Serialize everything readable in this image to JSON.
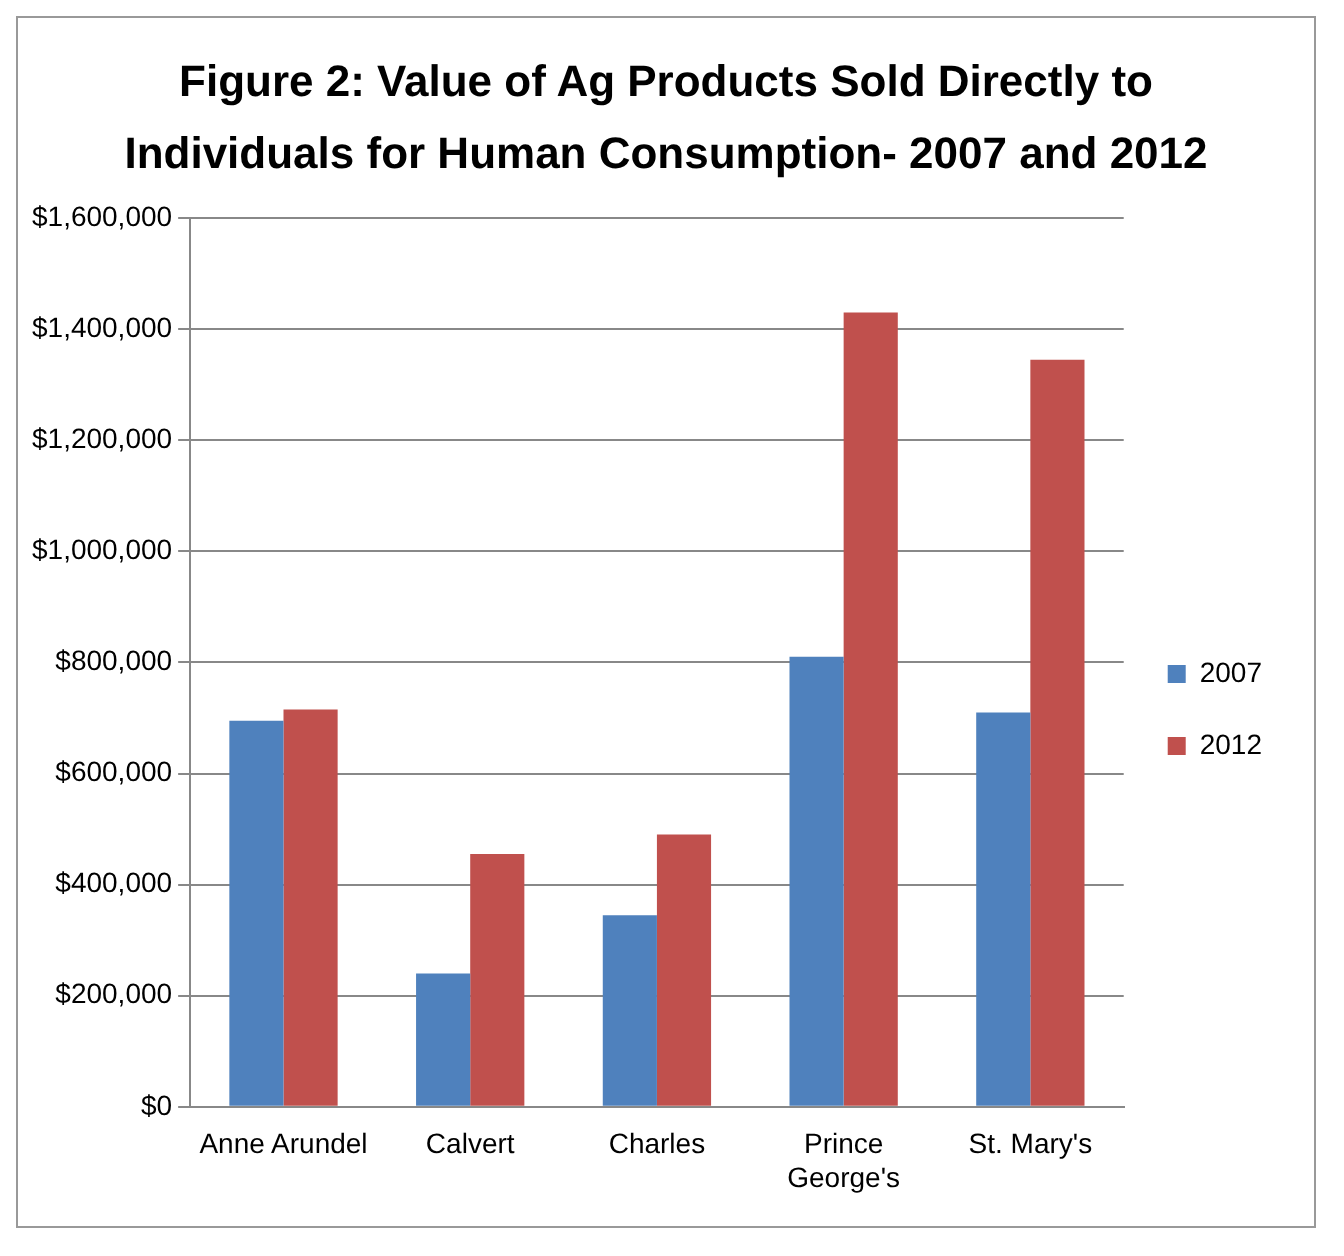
{
  "chart_data": {
    "type": "bar",
    "title": "Figure 2: Value of Ag Products Sold Directly to Individuals for Human Consumption- 2007 and 2012",
    "categories": [
      "Anne Arundel",
      "Calvert",
      "Charles",
      "Prince George's",
      "St. Mary's"
    ],
    "series": [
      {
        "name": "2007",
        "color": "#4f81bd",
        "values": [
          695000,
          240000,
          345000,
          810000,
          710000
        ]
      },
      {
        "name": "2012",
        "color": "#c0504d",
        "values": [
          715000,
          455000,
          490000,
          1430000,
          1345000
        ]
      }
    ],
    "ylim": [
      0,
      1600000
    ],
    "yticks": [
      {
        "value": 0,
        "label": "$0"
      },
      {
        "value": 200000,
        "label": "$200,000"
      },
      {
        "value": 400000,
        "label": "$400,000"
      },
      {
        "value": 600000,
        "label": "$600,000"
      },
      {
        "value": 800000,
        "label": "$800,000"
      },
      {
        "value": 1000000,
        "label": "$1,000,000"
      },
      {
        "value": 1200000,
        "label": "$1,200,000"
      },
      {
        "value": 1400000,
        "label": "$1,400,000"
      },
      {
        "value": 1600000,
        "label": "$1,600,000"
      }
    ],
    "grid": "y",
    "legend": "right"
  }
}
